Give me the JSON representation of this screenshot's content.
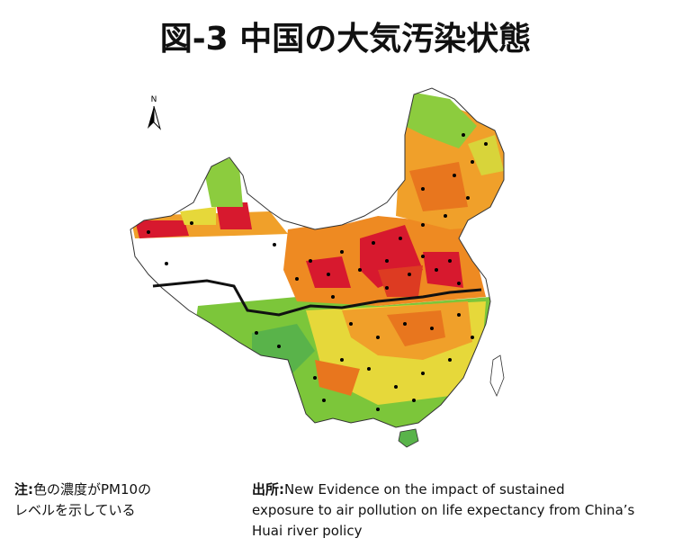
{
  "title": "図-3 中国の大気汚染状態",
  "north": "N",
  "note": {
    "label": "注:",
    "lines": [
      "色の濃度がPM10の",
      "レベルを示している"
    ]
  },
  "source": {
    "label": "出所:",
    "lines": [
      "New Evidence on the impact of sustained",
      "exposure to air pollution on life expectancy from China’s",
      "Huai river policy"
    ]
  }
}
